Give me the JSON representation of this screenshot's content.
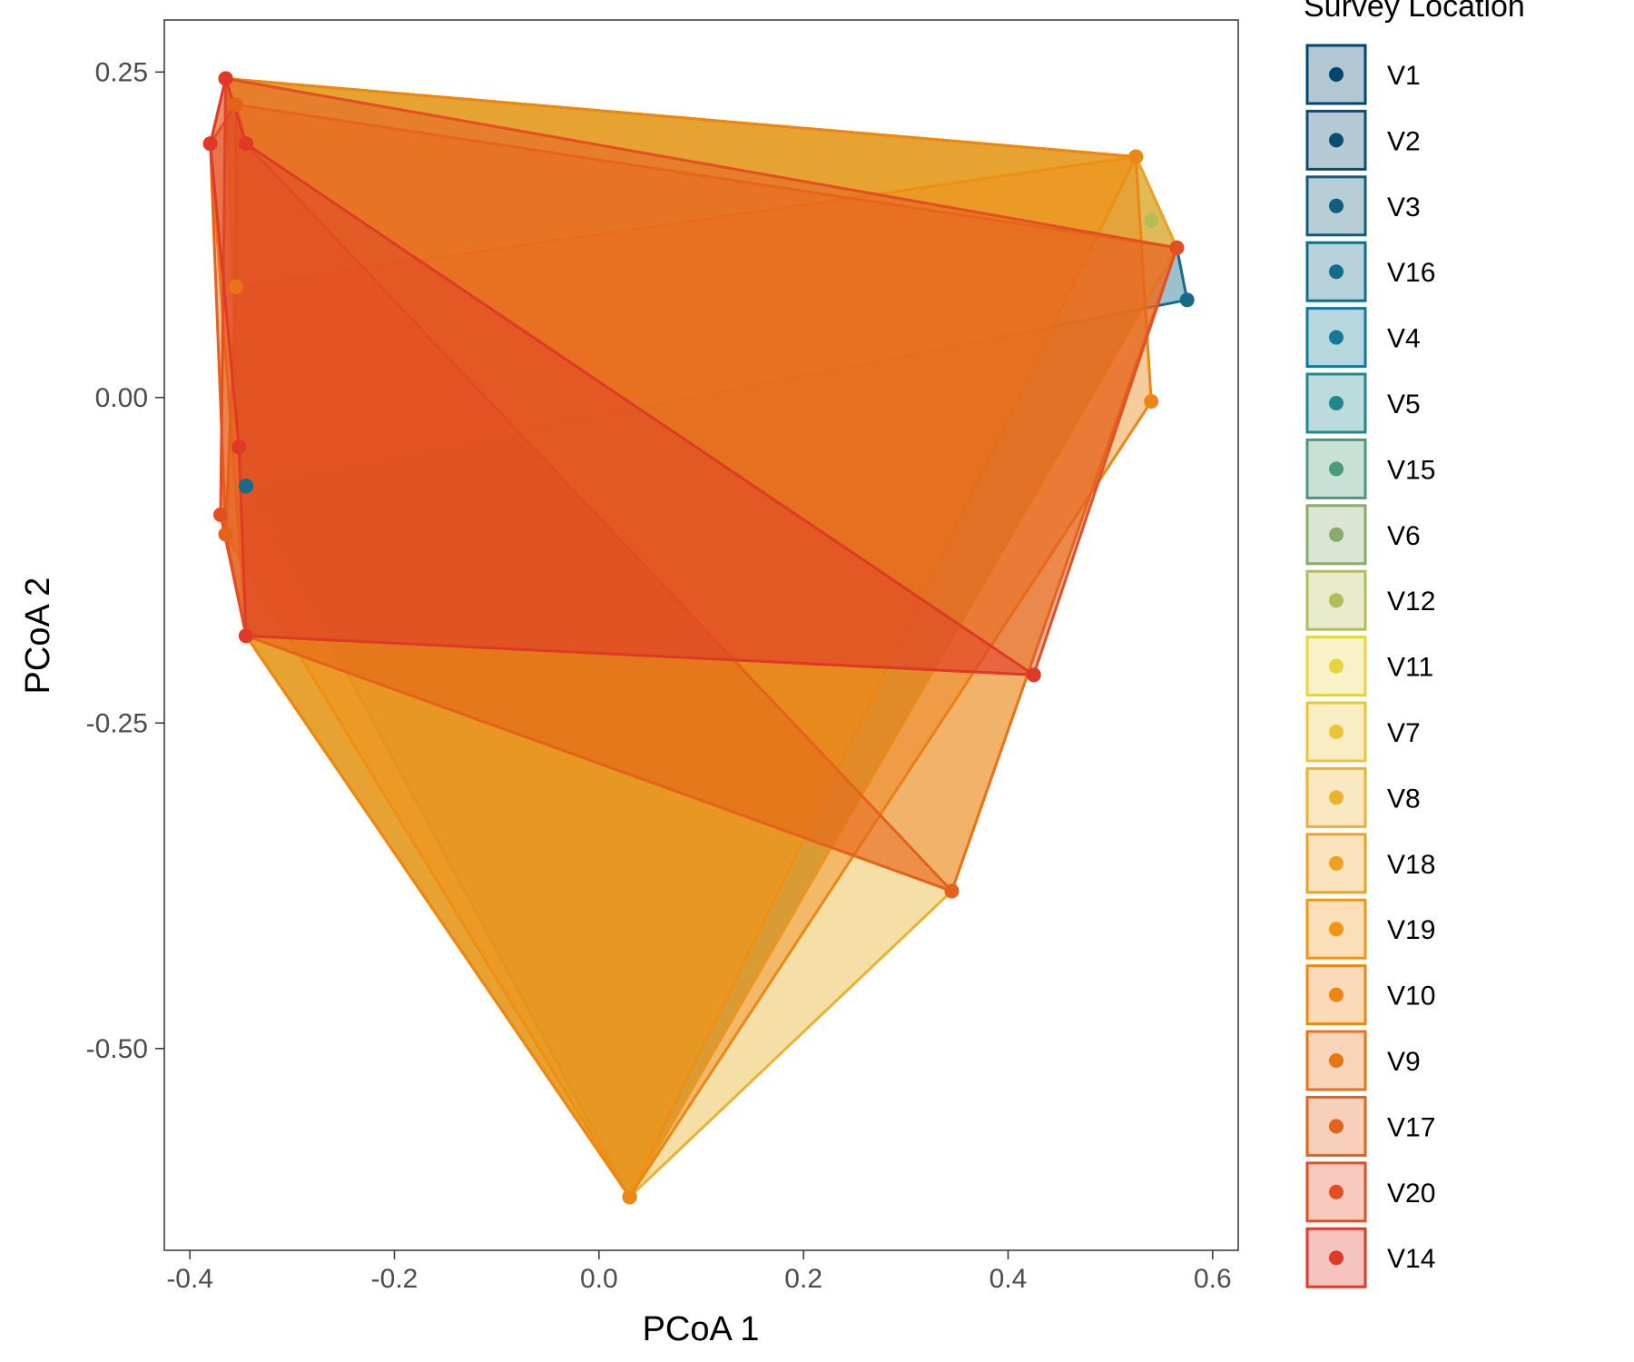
{
  "chart_data": {
    "type": "scatter",
    "subtype": "convex hulls per group",
    "xlabel": "PCoA 1",
    "ylabel": "PCoA 2",
    "xlim": [
      -0.425,
      0.625
    ],
    "ylim": [
      -0.655,
      0.29
    ],
    "x_ticks": [
      {
        "value": -0.4,
        "label": "-0.4"
      },
      {
        "value": -0.2,
        "label": "-0.2"
      },
      {
        "value": 0.0,
        "label": "0.0"
      },
      {
        "value": 0.2,
        "label": "0.2"
      },
      {
        "value": 0.4,
        "label": "0.4"
      },
      {
        "value": 0.6,
        "label": "0.6"
      }
    ],
    "y_ticks": [
      {
        "value": 0.25,
        "label": "0.25"
      },
      {
        "value": 0.0,
        "label": "0.00"
      },
      {
        "value": -0.25,
        "label": "-0.25"
      },
      {
        "value": -0.5,
        "label": "-0.50"
      }
    ],
    "grid": false,
    "legend": {
      "title": "Survey Location",
      "position": "right"
    },
    "series": [
      {
        "name": "V1",
        "color": "#00466f",
        "points": [
          [
            -0.345,
            -0.068
          ]
        ]
      },
      {
        "name": "V2",
        "color": "#0b4f70",
        "points": []
      },
      {
        "name": "V3",
        "color": "#135d7c",
        "points": []
      },
      {
        "name": "V16",
        "color": "#146b8a",
        "points": [
          [
            -0.345,
            -0.068
          ],
          [
            0.575,
            0.075
          ],
          [
            0.565,
            0.115
          ],
          [
            0.03,
            -0.614
          ]
        ]
      },
      {
        "name": "V4",
        "color": "#127a95",
        "points": []
      },
      {
        "name": "V5",
        "color": "#20878f",
        "points": []
      },
      {
        "name": "V15",
        "color": "#4a9a7b",
        "points": []
      },
      {
        "name": "V6",
        "color": "#86ab6a",
        "points": [
          [
            -0.365,
            0.245
          ],
          [
            0.525,
            0.185
          ],
          [
            0.565,
            0.115
          ],
          [
            0.03,
            -0.614
          ],
          [
            -0.345,
            -0.183
          ]
        ]
      },
      {
        "name": "V12",
        "color": "#b3bc56",
        "points": [
          [
            0.54,
            0.136
          ]
        ]
      },
      {
        "name": "V11",
        "color": "#e8d341",
        "points": [
          [
            -0.365,
            0.245
          ],
          [
            0.525,
            0.185
          ],
          [
            0.03,
            -0.614
          ],
          [
            -0.345,
            -0.183
          ]
        ]
      },
      {
        "name": "V7",
        "color": "#ecc43a",
        "points": []
      },
      {
        "name": "V8",
        "color": "#eab22e",
        "points": [
          [
            -0.365,
            0.245
          ],
          [
            0.525,
            0.185
          ],
          [
            0.565,
            0.115
          ],
          [
            0.345,
            -0.379
          ],
          [
            0.03,
            -0.614
          ],
          [
            -0.345,
            -0.183
          ],
          [
            -0.37,
            -0.09
          ]
        ]
      },
      {
        "name": "V18",
        "color": "#eda322",
        "points": [
          [
            -0.365,
            0.245
          ],
          [
            0.525,
            0.185
          ],
          [
            0.565,
            0.115
          ],
          [
            0.03,
            -0.614
          ],
          [
            -0.345,
            -0.183
          ]
        ]
      },
      {
        "name": "V19",
        "color": "#ef9616",
        "points": [
          [
            0.525,
            0.185
          ],
          [
            0.03,
            -0.614
          ],
          [
            -0.365,
            -0.105
          ],
          [
            -0.355,
            0.085
          ]
        ]
      },
      {
        "name": "V10",
        "color": "#ed8613",
        "points": [
          [
            -0.365,
            0.245
          ],
          [
            0.525,
            0.185
          ],
          [
            0.54,
            -0.003
          ],
          [
            0.03,
            -0.614
          ],
          [
            -0.345,
            -0.183
          ],
          [
            -0.38,
            0.195
          ]
        ]
      },
      {
        "name": "V9",
        "color": "#e97416",
        "points": [
          [
            -0.355,
            0.225
          ],
          [
            0.565,
            0.115
          ],
          [
            0.345,
            -0.379
          ],
          [
            -0.345,
            -0.183
          ],
          [
            -0.365,
            -0.105
          ],
          [
            -0.355,
            0.085
          ]
        ]
      },
      {
        "name": "V17",
        "color": "#e5621d",
        "points": [
          [
            -0.355,
            0.225
          ],
          [
            -0.345,
            0.195
          ],
          [
            0.345,
            -0.379
          ],
          [
            -0.345,
            -0.183
          ],
          [
            -0.365,
            -0.105
          ],
          [
            -0.38,
            0.195
          ]
        ]
      },
      {
        "name": "V20",
        "color": "#e34e23",
        "points": [
          [
            -0.365,
            0.245
          ],
          [
            0.565,
            0.115
          ],
          [
            0.425,
            -0.213
          ],
          [
            -0.345,
            -0.183
          ],
          [
            -0.37,
            -0.09
          ]
        ]
      },
      {
        "name": "V14",
        "color": "#df3a28",
        "points": [
          [
            -0.365,
            0.245
          ],
          [
            -0.345,
            0.195
          ],
          [
            0.425,
            -0.213
          ],
          [
            -0.345,
            -0.183
          ],
          [
            -0.352,
            -0.038
          ],
          [
            -0.38,
            0.195
          ]
        ]
      }
    ]
  }
}
